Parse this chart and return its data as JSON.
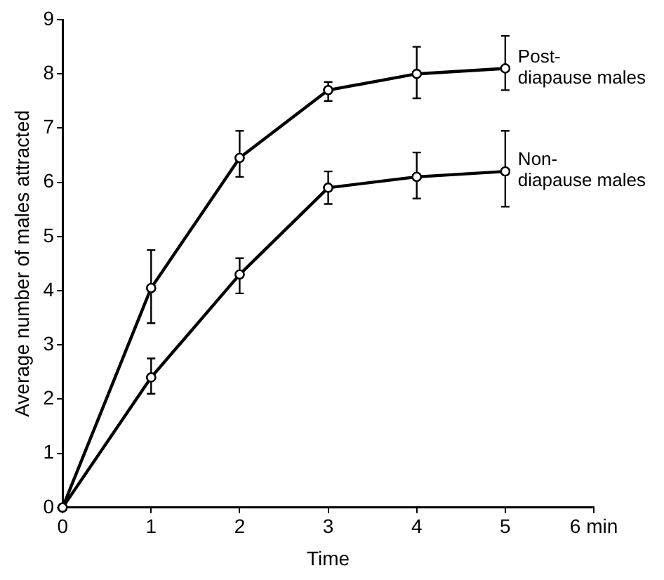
{
  "chart_data": {
    "type": "line",
    "xlabel": "Time",
    "ylabel": "Average number of males attracted",
    "x": [
      0,
      1,
      2,
      3,
      4,
      5
    ],
    "xlim": [
      0,
      6
    ],
    "xticks": [
      0,
      1,
      2,
      3,
      4,
      5,
      {
        "value": 6,
        "label": "6 min"
      }
    ],
    "ylim": [
      0,
      9
    ],
    "yticks": [
      0,
      1,
      2,
      3,
      4,
      5,
      6,
      7,
      8,
      9
    ],
    "series": [
      {
        "name": "Post-diapause males",
        "color": "#000000",
        "values": [
          0,
          4.05,
          6.45,
          7.7,
          8.0,
          8.1
        ],
        "errors": [
          null,
          [
            3.4,
            4.75
          ],
          [
            6.1,
            6.95
          ],
          [
            7.5,
            7.85
          ],
          [
            7.55,
            8.5
          ],
          [
            7.7,
            8.7
          ]
        ]
      },
      {
        "name": "Non-diapause males",
        "color": "#000000",
        "values": [
          0,
          2.4,
          4.3,
          5.9,
          6.1,
          6.2
        ],
        "errors": [
          null,
          [
            2.1,
            2.75
          ],
          [
            3.95,
            4.6
          ],
          [
            5.6,
            6.2
          ],
          [
            5.7,
            6.55
          ],
          [
            5.55,
            6.95
          ]
        ]
      }
    ],
    "marker": "circle",
    "line_style": "solid",
    "grid": false,
    "legend": false
  }
}
